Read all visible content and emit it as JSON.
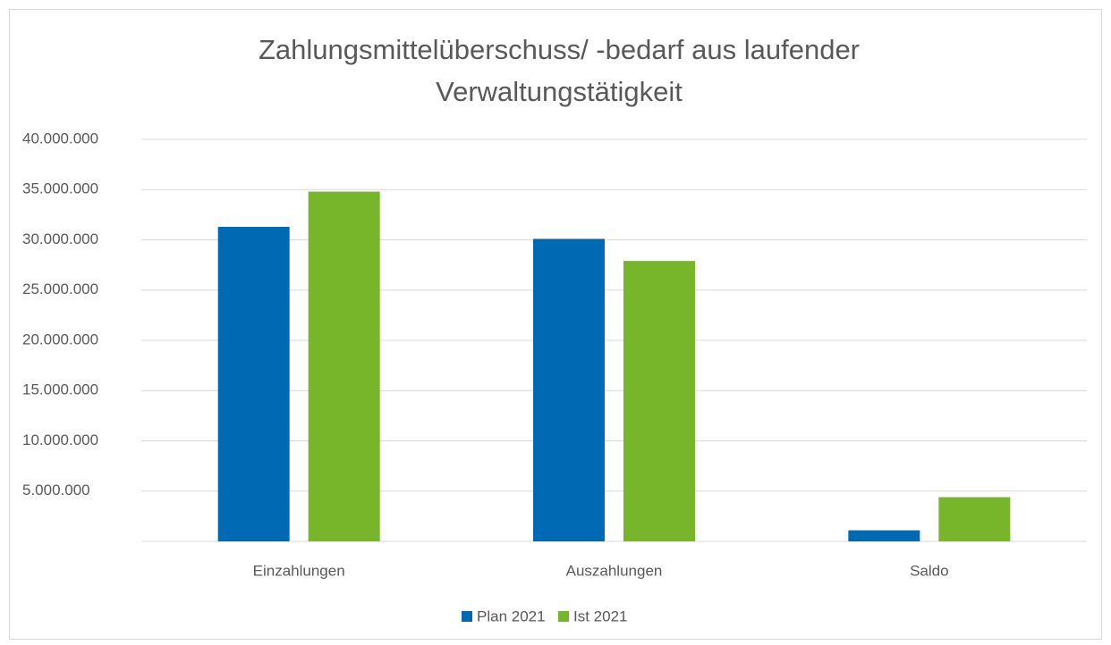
{
  "chart_data": {
    "type": "bar",
    "title": "Zahlungsmittelüberschuss/ -bedarf aus laufender Verwaltungstätigkeit",
    "categories": [
      "Einzahlungen",
      "Auszahlungen",
      "Saldo"
    ],
    "series": [
      {
        "name": "Plan 2021",
        "color": "#0069b4",
        "values": [
          31300000,
          30100000,
          1100000
        ]
      },
      {
        "name": "Ist 2021",
        "color": "#77b52b",
        "values": [
          34800000,
          27900000,
          4400000
        ]
      }
    ],
    "ylim": [
      0,
      40000000
    ],
    "yticks": [
      {
        "value": 5000000,
        "label": "5.000.000"
      },
      {
        "value": 10000000,
        "label": "10.000.000"
      },
      {
        "value": 15000000,
        "label": "15.000.000"
      },
      {
        "value": 20000000,
        "label": "20.000.000"
      },
      {
        "value": 25000000,
        "label": "25.000.000"
      },
      {
        "value": 30000000,
        "label": "30.000.000"
      },
      {
        "value": 35000000,
        "label": "35.000.000"
      },
      {
        "value": 40000000,
        "label": "40.000.000"
      }
    ],
    "grid": true,
    "legend": "bottom"
  }
}
